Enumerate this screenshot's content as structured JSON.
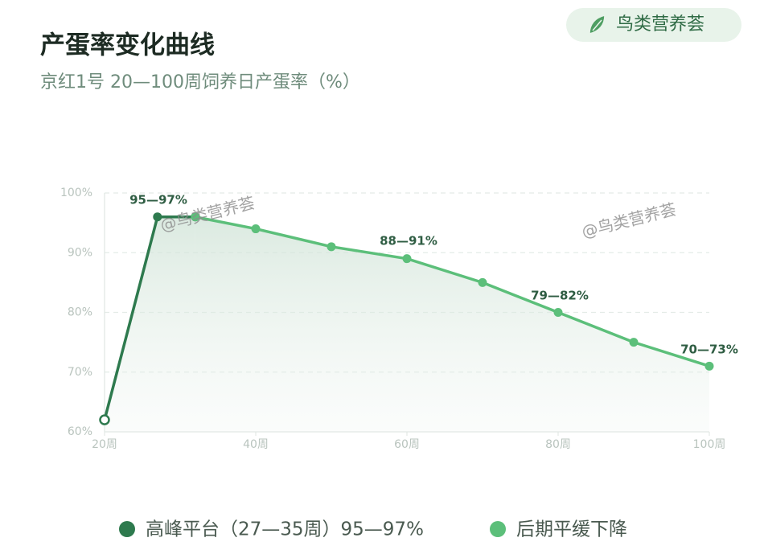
{
  "chart_data": {
    "type": "line",
    "title": "产蛋率变化曲线",
    "subtitle": "京红1号 20—100周饲养日产蛋率（%）",
    "badge": "鸟类营养荟",
    "watermarks": [
      "@鸟类营养荟",
      "@鸟类营养荟"
    ],
    "x": [
      20,
      27,
      32,
      40,
      50,
      60,
      70,
      80,
      90,
      100
    ],
    "series": [
      {
        "name": "高峰平台（27—35周）95—97%",
        "color": "#2e7a4e",
        "values": [
          62,
          96,
          96,
          null,
          null,
          null,
          null,
          null,
          null,
          null
        ]
      },
      {
        "name": "后期平缓下降",
        "color": "#5cbf7a",
        "values": [
          null,
          null,
          96,
          94,
          91,
          89,
          85,
          80,
          75,
          71
        ]
      }
    ],
    "annotations": [
      "95—97%",
      "88—91%",
      "79—82%",
      "70—73%"
    ],
    "xlim": [
      20,
      100
    ],
    "xticks": [
      {
        "value": 20,
        "label": "20周"
      },
      {
        "value": 40,
        "label": "40周"
      },
      {
        "value": 60,
        "label": "60周"
      },
      {
        "value": 80,
        "label": "80周"
      },
      {
        "value": 100,
        "label": "100周"
      }
    ],
    "ylim": [
      60,
      100
    ],
    "yticks": [
      {
        "value": 60,
        "label": "60%"
      },
      {
        "value": 70,
        "label": "70%"
      },
      {
        "value": 80,
        "label": "80%"
      },
      {
        "value": 90,
        "label": "90%"
      },
      {
        "value": 100,
        "label": "100%"
      }
    ],
    "grid": true
  }
}
